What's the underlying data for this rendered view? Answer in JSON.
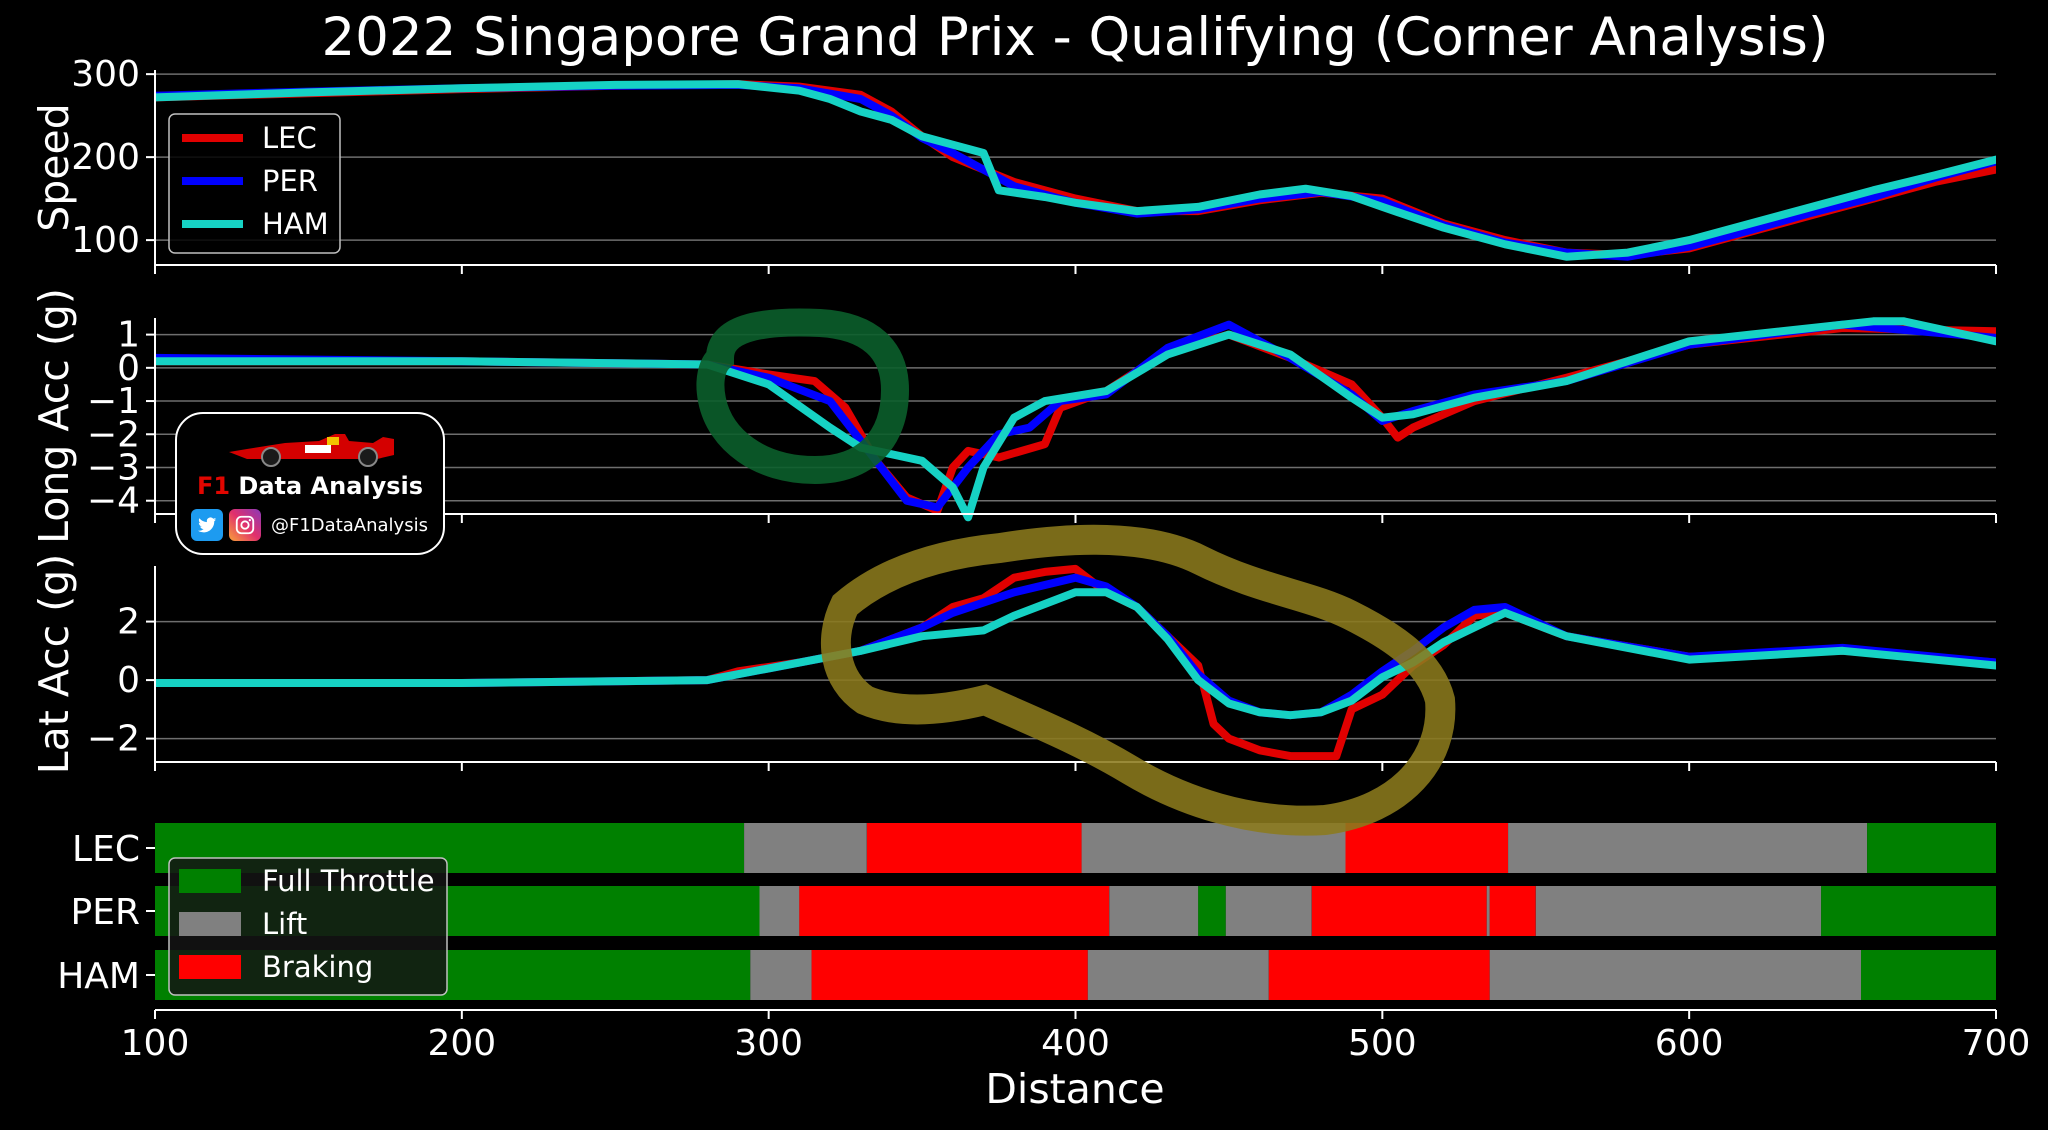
{
  "chart_data": {
    "title": "2022 Singapore Grand Prix - Qualifying (Corner Analysis)",
    "xlabel": "Distance",
    "xlim": [
      100,
      700
    ],
    "xticks": [
      100,
      200,
      300,
      400,
      500,
      600,
      700
    ],
    "grid": "horizontal",
    "legend_placement": "left",
    "series_colors": {
      "LEC": "#e10000",
      "PER": "#0000ff",
      "HAM": "#16d2c4"
    },
    "panels": [
      {
        "type": "line",
        "ylabel": "Speed",
        "ylim": [
          70,
          305
        ],
        "yticks": [
          100,
          200,
          300
        ],
        "legend": [
          "LEC",
          "PER",
          "HAM"
        ],
        "series": [
          {
            "name": "LEC",
            "x": [
              100,
              150,
              200,
              250,
              290,
              310,
              330,
              340,
              350,
              360,
              370,
              380,
              400,
              420,
              440,
              460,
              480,
              500,
              520,
              540,
              560,
              580,
              600,
              620,
              640,
              660,
              680,
              700
            ],
            "y": [
              272,
              277,
              282,
              286,
              288,
              285,
              275,
              255,
              225,
              200,
              185,
              170,
              150,
              135,
              135,
              148,
              157,
              150,
              120,
              100,
              85,
              82,
              90,
              110,
              130,
              150,
              170,
              185
            ]
          },
          {
            "name": "PER",
            "x": [
              100,
              150,
              200,
              250,
              290,
              310,
              330,
              340,
              350,
              360,
              370,
              380,
              400,
              420,
              440,
              460,
              480,
              500,
              520,
              540,
              560,
              580,
              600,
              620,
              640,
              660,
              680,
              700
            ],
            "y": [
              274,
              279,
              283,
              286,
              287,
              283,
              270,
              250,
              223,
              205,
              185,
              165,
              145,
              132,
              137,
              150,
              158,
              147,
              118,
              97,
              85,
              80,
              92,
              112,
              133,
              152,
              175,
              195
            ]
          },
          {
            "name": "HAM",
            "x": [
              100,
              150,
              200,
              250,
              290,
              310,
              320,
              330,
              340,
              350,
              360,
              370,
              375,
              390,
              400,
              420,
              440,
              460,
              475,
              490,
              500,
              520,
              540,
              560,
              580,
              600,
              620,
              640,
              660,
              680,
              700
            ],
            "y": [
              272,
              278,
              283,
              287,
              288,
              280,
              270,
              255,
              245,
              225,
              215,
              205,
              160,
              152,
              145,
              135,
              140,
              155,
              162,
              153,
              140,
              115,
              95,
              80,
              85,
              100,
              120,
              140,
              160,
              178,
              197
            ]
          }
        ]
      },
      {
        "type": "line",
        "ylabel": "Long Acc (g)",
        "ylim": [
          -4.4,
          1.5
        ],
        "yticks": [
          1,
          0,
          -1,
          -2,
          -3,
          -4
        ],
        "series": [
          {
            "name": "LEC",
            "x": [
              100,
              200,
              280,
              300,
              315,
              325,
              335,
              345,
              355,
              360,
              365,
              375,
              390,
              395,
              410,
              430,
              450,
              470,
              490,
              500,
              505,
              510,
              530,
              560,
              600,
              650,
              700
            ],
            "y": [
              0.2,
              0.2,
              0.1,
              -0.2,
              -0.4,
              -1.2,
              -2.8,
              -3.9,
              -4.3,
              -3.0,
              -2.5,
              -2.7,
              -2.3,
              -1.2,
              -0.7,
              0.5,
              1.0,
              0.3,
              -0.5,
              -1.5,
              -2.1,
              -1.8,
              -1.0,
              -0.3,
              0.7,
              1.2,
              1.1
            ]
          },
          {
            "name": "PER",
            "x": [
              100,
              200,
              280,
              300,
              320,
              335,
              345,
              355,
              365,
              375,
              385,
              395,
              410,
              430,
              450,
              470,
              490,
              500,
              510,
              530,
              560,
              600,
              650,
              700
            ],
            "y": [
              0.3,
              0.2,
              0.1,
              -0.3,
              -1.0,
              -2.8,
              -4.0,
              -4.2,
              -3.0,
              -2.0,
              -1.8,
              -1.0,
              -0.8,
              0.6,
              1.3,
              0.3,
              -0.8,
              -1.6,
              -1.3,
              -0.8,
              -0.4,
              0.7,
              1.3,
              0.9
            ]
          },
          {
            "name": "HAM",
            "x": [
              100,
              200,
              280,
              300,
              320,
              330,
              350,
              360,
              365,
              370,
              380,
              390,
              410,
              430,
              450,
              470,
              490,
              500,
              510,
              530,
              560,
              600,
              620,
              660,
              670,
              700
            ],
            "y": [
              0.2,
              0.2,
              0.1,
              -0.5,
              -1.8,
              -2.4,
              -2.8,
              -3.6,
              -4.5,
              -3.0,
              -1.5,
              -1.0,
              -0.7,
              0.4,
              1.0,
              0.4,
              -0.9,
              -1.5,
              -1.4,
              -0.9,
              -0.4,
              0.8,
              1.0,
              1.4,
              1.4,
              0.8
            ]
          }
        ]
      },
      {
        "type": "line",
        "ylabel": "Lat Acc (g)",
        "ylim": [
          -2.8,
          3.9
        ],
        "yticks": [
          2,
          0,
          -2
        ],
        "series": [
          {
            "name": "LEC",
            "x": [
              100,
              200,
              280,
              290,
              310,
              330,
              340,
              350,
              360,
              370,
              380,
              390,
              400,
              410,
              420,
              430,
              440,
              445,
              450,
              460,
              470,
              485,
              490,
              500,
              510,
              520,
              530,
              540,
              560,
              600,
              650,
              700
            ],
            "y": [
              -0.1,
              -0.1,
              0.0,
              0.3,
              0.6,
              1.0,
              1.4,
              1.8,
              2.5,
              2.8,
              3.5,
              3.7,
              3.8,
              3.0,
              2.5,
              1.5,
              0.5,
              -1.5,
              -2.0,
              -2.4,
              -2.6,
              -2.6,
              -1.0,
              -0.5,
              0.5,
              1.2,
              2.2,
              2.3,
              1.5,
              0.8,
              1.0,
              0.6
            ]
          },
          {
            "name": "PER",
            "x": [
              100,
              200,
              280,
              300,
              330,
              350,
              360,
              380,
              400,
              410,
              420,
              430,
              440,
              450,
              460,
              470,
              480,
              490,
              500,
              510,
              520,
              530,
              540,
              560,
              600,
              650,
              700
            ],
            "y": [
              -0.1,
              -0.1,
              0.0,
              0.4,
              1.0,
              1.8,
              2.3,
              3.0,
              3.5,
              3.2,
              2.5,
              1.5,
              0.2,
              -0.7,
              -1.1,
              -1.2,
              -1.1,
              -0.5,
              0.3,
              1.0,
              1.8,
              2.4,
              2.5,
              1.5,
              0.8,
              1.1,
              0.6
            ]
          },
          {
            "name": "HAM",
            "x": [
              100,
              200,
              280,
              300,
              330,
              350,
              360,
              370,
              380,
              390,
              400,
              410,
              420,
              430,
              440,
              450,
              460,
              470,
              480,
              490,
              500,
              510,
              520,
              530,
              540,
              560,
              600,
              650,
              700
            ],
            "y": [
              -0.1,
              -0.1,
              0.0,
              0.4,
              1.0,
              1.5,
              1.6,
              1.7,
              2.2,
              2.6,
              3.0,
              3.0,
              2.5,
              1.4,
              0.0,
              -0.8,
              -1.1,
              -1.2,
              -1.1,
              -0.7,
              0.1,
              0.6,
              1.3,
              1.8,
              2.3,
              1.5,
              0.7,
              1.0,
              0.5
            ]
          }
        ]
      },
      {
        "type": "bar",
        "categories": [
          "LEC",
          "PER",
          "HAM"
        ],
        "legend": [
          "Full Throttle",
          "Lift",
          "Braking"
        ],
        "legend_colors": {
          "Full Throttle": "#008000",
          "Lift": "#808080",
          "Braking": "#ff0000"
        },
        "segments": {
          "LEC": [
            {
              "start": 100,
              "end": 292,
              "state": "Full Throttle"
            },
            {
              "start": 292,
              "end": 332,
              "state": "Lift"
            },
            {
              "start": 332,
              "end": 402,
              "state": "Braking"
            },
            {
              "start": 402,
              "end": 488,
              "state": "Lift"
            },
            {
              "start": 488,
              "end": 541,
              "state": "Braking"
            },
            {
              "start": 541,
              "end": 658,
              "state": "Lift"
            },
            {
              "start": 658,
              "end": 700,
              "state": "Full Throttle"
            }
          ],
          "PER": [
            {
              "start": 100,
              "end": 297,
              "state": "Full Throttle"
            },
            {
              "start": 297,
              "end": 310,
              "state": "Lift"
            },
            {
              "start": 310,
              "end": 411,
              "state": "Braking"
            },
            {
              "start": 411,
              "end": 440,
              "state": "Lift"
            },
            {
              "start": 440,
              "end": 449,
              "state": "Full Throttle"
            },
            {
              "start": 449,
              "end": 477,
              "state": "Lift"
            },
            {
              "start": 477,
              "end": 534,
              "state": "Braking"
            },
            {
              "start": 534,
              "end": 535,
              "state": "Lift"
            },
            {
              "start": 535,
              "end": 550,
              "state": "Braking"
            },
            {
              "start": 550,
              "end": 643,
              "state": "Lift"
            },
            {
              "start": 643,
              "end": 700,
              "state": "Full Throttle"
            }
          ],
          "HAM": [
            {
              "start": 100,
              "end": 294,
              "state": "Full Throttle"
            },
            {
              "start": 294,
              "end": 314,
              "state": "Lift"
            },
            {
              "start": 314,
              "end": 404,
              "state": "Braking"
            },
            {
              "start": 404,
              "end": 463,
              "state": "Lift"
            },
            {
              "start": 463,
              "end": 535,
              "state": "Braking"
            },
            {
              "start": 535,
              "end": 656,
              "state": "Lift"
            },
            {
              "start": 656,
              "end": 700,
              "state": "Full Throttle"
            }
          ]
        }
      }
    ],
    "annotations": [
      {
        "shape": "circle",
        "color": "#0b5e2b",
        "panel": "Long Acc (g)"
      },
      {
        "shape": "loop",
        "color": "#8b7a1c",
        "panel": "Lat Acc (g)"
      }
    ]
  },
  "logo": {
    "prefix": "F1",
    "name": "Data Analysis",
    "handle": "@F1DataAnalysis",
    "icons": [
      "twitter-icon",
      "instagram-icon"
    ]
  }
}
